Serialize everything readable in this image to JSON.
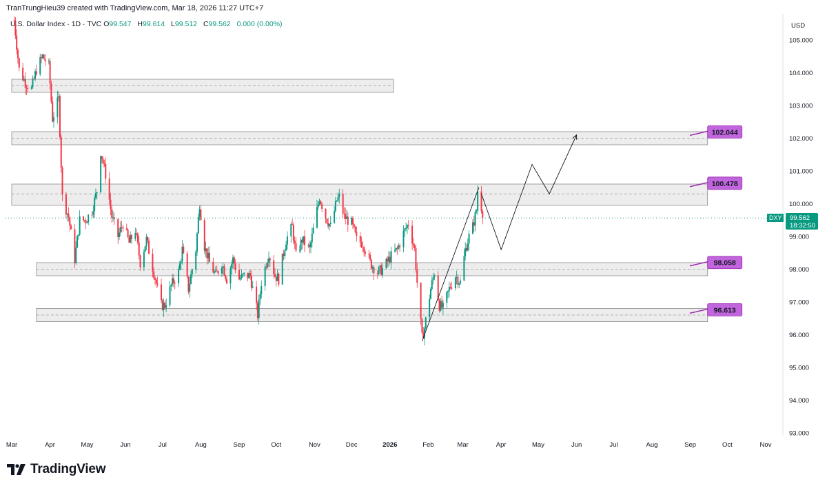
{
  "attribution": "TranTrungHieu39 created with TradingView.com, Mar 18, 2026 11:27 UTC+7",
  "legend": {
    "symbol": "U.S. Dollar Index · 1D · TVC",
    "open_key": "O",
    "open": "99.547",
    "high_key": "H",
    "high": "99.614",
    "low_key": "L",
    "low": "99.512",
    "close_key": "C",
    "close": "99.562",
    "change": "0.000 (0.00%)"
  },
  "currency": "USD",
  "price_tag": {
    "symbol": "DXY",
    "price": "99.562",
    "countdown": "18:32:50"
  },
  "brand": "TradingView",
  "colors": {
    "up": "#089981",
    "down": "#f23645",
    "annotation": "#c165dd",
    "annotation_border": "#9c27b0",
    "zone_fill": "#ededed",
    "zone_border": "#8c8c8c"
  },
  "chart_data": {
    "type": "candlestick",
    "symbol": "DXY",
    "ylim": [
      93,
      105.7
    ],
    "y_ticks": [
      105,
      104,
      103,
      102,
      101,
      100,
      99,
      98,
      97,
      96,
      95,
      94,
      93
    ],
    "y_tick_labels": [
      "105.000",
      "104.000",
      "103.000",
      "102.000",
      "101.000",
      "100.000",
      "99.000",
      "98.000",
      "97.000",
      "96.000",
      "95.000",
      "94.000",
      "93.000"
    ],
    "x_ticks": [
      {
        "label": "Mar",
        "date": "2025-03-01"
      },
      {
        "label": "Apr",
        "date": "2025-04-01"
      },
      {
        "label": "May",
        "date": "2025-05-01"
      },
      {
        "label": "Jun",
        "date": "2025-06-01"
      },
      {
        "label": "Jul",
        "date": "2025-07-01"
      },
      {
        "label": "Aug",
        "date": "2025-08-01"
      },
      {
        "label": "Sep",
        "date": "2025-09-01"
      },
      {
        "label": "Oct",
        "date": "2025-10-01"
      },
      {
        "label": "Nov",
        "date": "2025-11-01"
      },
      {
        "label": "Dec",
        "date": "2025-12-01"
      },
      {
        "label": "2026",
        "date": "2026-01-01",
        "bold": true
      },
      {
        "label": "Feb",
        "date": "2026-02-01"
      },
      {
        "label": "Mar",
        "date": "2026-03-01"
      },
      {
        "label": "Apr",
        "date": "2026-04-01"
      },
      {
        "label": "May",
        "date": "2026-05-01"
      },
      {
        "label": "Jun",
        "date": "2026-06-01"
      },
      {
        "label": "Jul",
        "date": "2026-07-01"
      },
      {
        "label": "Aug",
        "date": "2026-08-01"
      },
      {
        "label": "Sep",
        "date": "2026-09-01"
      },
      {
        "label": "Oct",
        "date": "2026-10-01"
      },
      {
        "label": "Nov",
        "date": "2026-11-01"
      }
    ],
    "price_path": [
      [
        "2025-03-03",
        105.6
      ],
      [
        "2025-03-07",
        104.1
      ],
      [
        "2025-03-12",
        103.7
      ],
      [
        "2025-03-17",
        103.5
      ],
      [
        "2025-03-21",
        104.1
      ],
      [
        "2025-03-26",
        104.5
      ],
      [
        "2025-03-31",
        104.2
      ],
      [
        "2025-04-03",
        102.6
      ],
      [
        "2025-04-08",
        103.2
      ],
      [
        "2025-04-11",
        100.2
      ],
      [
        "2025-04-16",
        99.6
      ],
      [
        "2025-04-21",
        98.3
      ],
      [
        "2025-04-25",
        99.5
      ],
      [
        "2025-04-30",
        99.5
      ],
      [
        "2025-05-05",
        99.8
      ],
      [
        "2025-05-09",
        100.4
      ],
      [
        "2025-05-12",
        101.6
      ],
      [
        "2025-05-16",
        100.9
      ],
      [
        "2025-05-21",
        99.6
      ],
      [
        "2025-05-26",
        99.0
      ],
      [
        "2025-05-30",
        99.4
      ],
      [
        "2025-06-04",
        98.8
      ],
      [
        "2025-06-09",
        99.2
      ],
      [
        "2025-06-13",
        98.2
      ],
      [
        "2025-06-18",
        98.9
      ],
      [
        "2025-06-24",
        97.9
      ],
      [
        "2025-06-30",
        96.9
      ],
      [
        "2025-07-03",
        96.9
      ],
      [
        "2025-07-08",
        97.5
      ],
      [
        "2025-07-14",
        97.9
      ],
      [
        "2025-07-17",
        98.6
      ],
      [
        "2025-07-22",
        97.4
      ],
      [
        "2025-07-28",
        98.6
      ],
      [
        "2025-07-31",
        100.0
      ],
      [
        "2025-08-04",
        98.7
      ],
      [
        "2025-08-08",
        98.2
      ],
      [
        "2025-08-13",
        97.8
      ],
      [
        "2025-08-18",
        98.2
      ],
      [
        "2025-08-22",
        97.7
      ],
      [
        "2025-08-27",
        98.3
      ],
      [
        "2025-09-01",
        97.7
      ],
      [
        "2025-09-05",
        97.8
      ],
      [
        "2025-09-10",
        97.8
      ],
      [
        "2025-09-16",
        96.6
      ],
      [
        "2025-09-19",
        97.6
      ],
      [
        "2025-09-25",
        98.5
      ],
      [
        "2025-09-30",
        97.8
      ],
      [
        "2025-10-03",
        97.7
      ],
      [
        "2025-10-09",
        98.9
      ],
      [
        "2025-10-14",
        99.3
      ],
      [
        "2025-10-17",
        98.4
      ],
      [
        "2025-10-22",
        98.9
      ],
      [
        "2025-10-28",
        98.6
      ],
      [
        "2025-11-03",
        99.8
      ],
      [
        "2025-11-05",
        100.2
      ],
      [
        "2025-11-10",
        99.6
      ],
      [
        "2025-11-14",
        99.3
      ],
      [
        "2025-11-19",
        100.1
      ],
      [
        "2025-11-21",
        100.2
      ],
      [
        "2025-11-25",
        99.6
      ],
      [
        "2025-12-01",
        99.4
      ],
      [
        "2025-12-05",
        98.9
      ],
      [
        "2025-12-10",
        98.8
      ],
      [
        "2025-12-16",
        98.2
      ],
      [
        "2025-12-22",
        97.9
      ],
      [
        "2025-12-26",
        98.0
      ],
      [
        "2026-01-02",
        98.4
      ],
      [
        "2026-01-07",
        98.6
      ],
      [
        "2026-01-12",
        99.1
      ],
      [
        "2026-01-16",
        99.4
      ],
      [
        "2026-01-21",
        98.6
      ],
      [
        "2026-01-23",
        97.6
      ],
      [
        "2026-01-27",
        95.9
      ],
      [
        "2026-01-29",
        96.2
      ],
      [
        "2026-02-03",
        97.4
      ],
      [
        "2026-02-06",
        97.9
      ],
      [
        "2026-02-10",
        96.9
      ],
      [
        "2026-02-13",
        96.8
      ],
      [
        "2026-02-18",
        97.4
      ],
      [
        "2026-02-23",
        97.8
      ],
      [
        "2026-02-27",
        97.6
      ],
      [
        "2026-03-03",
        98.6
      ],
      [
        "2026-03-06",
        99.0
      ],
      [
        "2026-03-09",
        99.3
      ],
      [
        "2026-03-12",
        99.8
      ],
      [
        "2026-03-13",
        100.4
      ],
      [
        "2026-03-16",
        99.9
      ],
      [
        "2026-03-18",
        99.56
      ]
    ],
    "zones": [
      {
        "from": "2025-03-01",
        "to": "2026-01-04",
        "low": 103.4,
        "high": 103.8,
        "mid": 103.6
      },
      {
        "from": "2025-03-01",
        "to": "2026-09-15",
        "low": 101.8,
        "high": 102.2,
        "mid": 102.0
      },
      {
        "from": "2025-03-01",
        "to": "2026-09-15",
        "low": 99.95,
        "high": 100.6,
        "mid": 100.3
      },
      {
        "from": "2025-03-21",
        "to": "2026-09-15",
        "low": 97.8,
        "high": 98.2,
        "mid": 98.0
      },
      {
        "from": "2025-03-21",
        "to": "2026-09-15",
        "low": 96.4,
        "high": 96.8,
        "mid": 96.6
      }
    ],
    "targets": [
      {
        "label": "102.044",
        "value": 102.044
      },
      {
        "label": "100.478",
        "value": 100.478
      },
      {
        "label": "98.058",
        "value": 98.058
      },
      {
        "label": "96.613",
        "value": 96.613
      }
    ],
    "trendline": [
      [
        "2026-01-27",
        95.8
      ],
      [
        "2026-03-14",
        100.5
      ]
    ],
    "projection": [
      [
        "2026-03-16",
        100.3
      ],
      [
        "2026-04-01",
        98.6
      ],
      [
        "2026-04-26",
        101.2
      ],
      [
        "2026-05-10",
        100.3
      ],
      [
        "2026-06-01",
        102.1
      ]
    ],
    "last_price": 99.562
  }
}
